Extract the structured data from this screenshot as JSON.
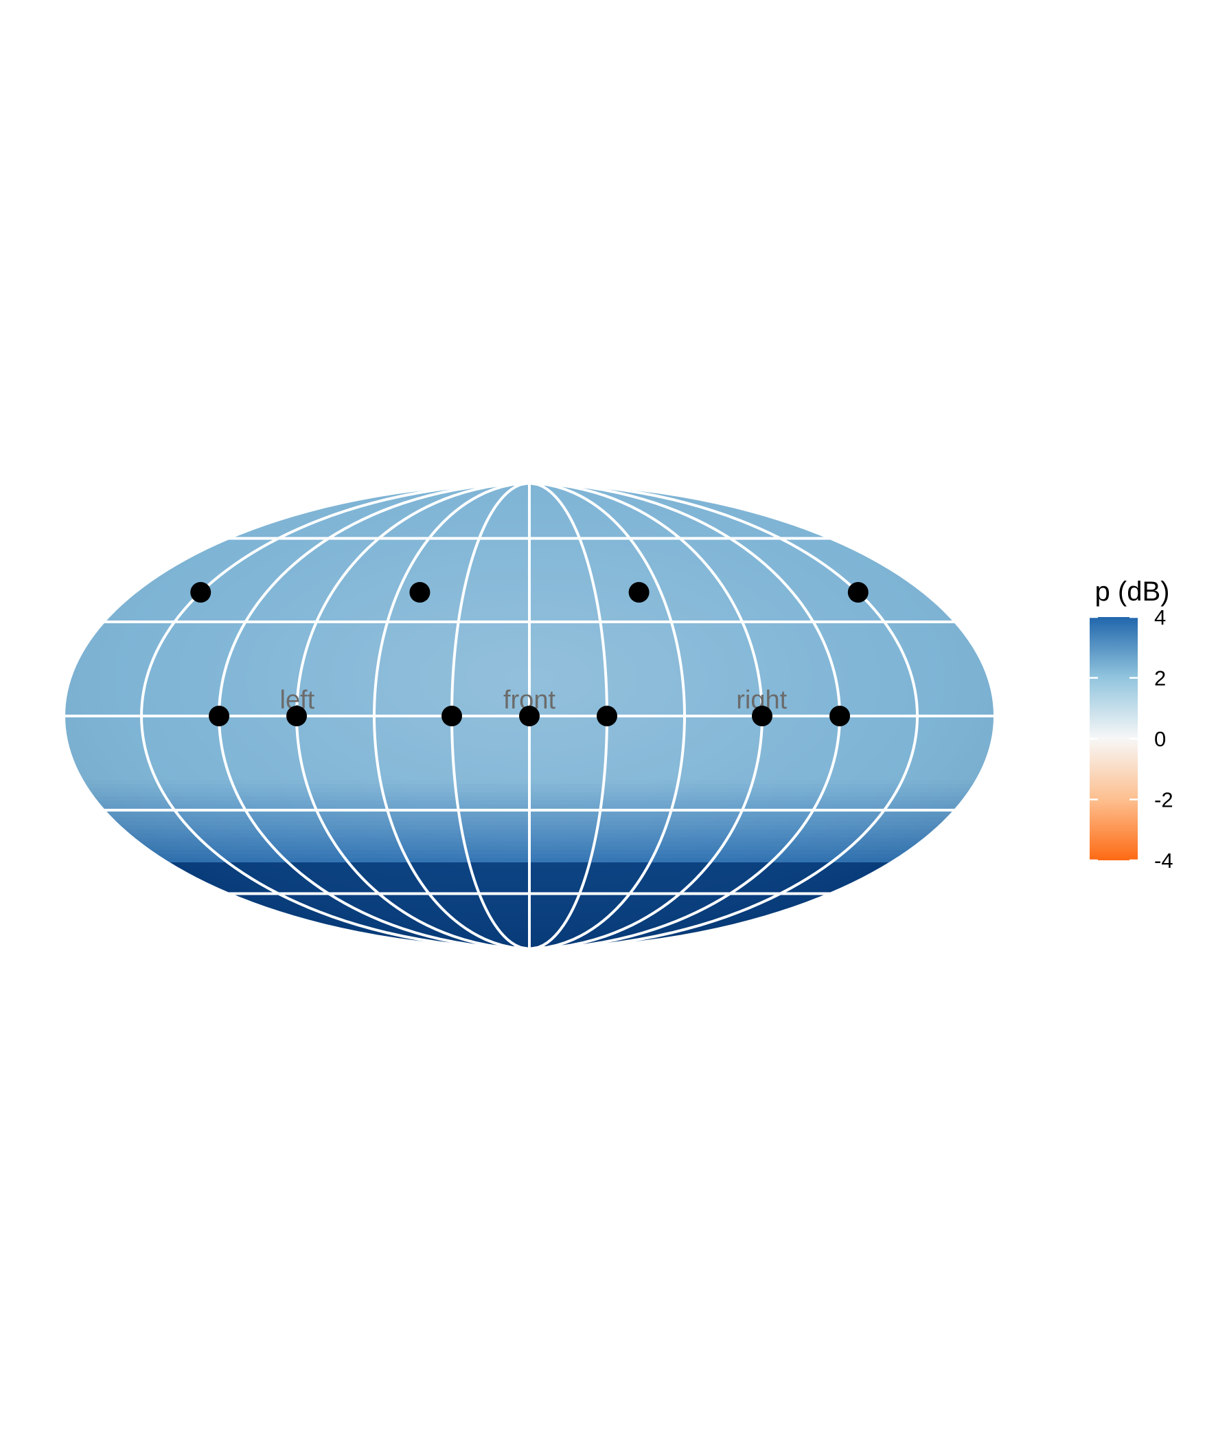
{
  "chart_data": {
    "type": "heatmap",
    "projection": "mollweide",
    "title": "",
    "xlabel": "",
    "ylabel": "",
    "grid": true,
    "grid_color": "#ffffff",
    "background": "#ffffff",
    "meridians_deg": [
      -180,
      -150,
      -120,
      -90,
      -60,
      -30,
      0,
      30,
      60,
      90,
      120,
      150,
      180
    ],
    "parallels_deg": [
      -60,
      -30,
      0,
      30,
      60
    ],
    "field": {
      "variable": "p (dB)",
      "base_value": 2.4,
      "description_colors": "light-to-medium blue over most of the sphere, deep blue (~4 dB, saturated) near the south pole region",
      "south_cap_from_lat_deg": -48,
      "south_cap_value": 4.6
    },
    "points": [
      {
        "lon": -150,
        "lat": 40
      },
      {
        "lon": -50,
        "lat": 40
      },
      {
        "lon": 50,
        "lat": 40
      },
      {
        "lon": 150,
        "lat": 40
      },
      {
        "lon": -120,
        "lat": 0
      },
      {
        "lon": -90,
        "lat": 0
      },
      {
        "lon": -30,
        "lat": 0
      },
      {
        "lon": 0,
        "lat": 0
      },
      {
        "lon": 30,
        "lat": 0
      },
      {
        "lon": 90,
        "lat": 0
      },
      {
        "lon": 120,
        "lat": 0
      }
    ],
    "point_color": "#000000",
    "direction_labels": [
      {
        "text": "left",
        "lon": -90,
        "lat": 5
      },
      {
        "text": "front",
        "lon": 0,
        "lat": 5
      },
      {
        "text": "right",
        "lon": 90,
        "lat": 5
      }
    ],
    "legend": {
      "title": "p (dB)",
      "placement": "right",
      "ticks": [
        4,
        2,
        0,
        -2,
        -4
      ],
      "tick_labels": [
        "4",
        "2",
        "0",
        "-2",
        "-4"
      ],
      "limits": [
        -4,
        4
      ],
      "colors": {
        "max": "#2166ac",
        "mid_high": "#92c5de",
        "zero": "#f7f7f7",
        "mid_low": "#fdbf8f",
        "min": "#fd6a13"
      },
      "saturated_high_color": "#053c7d"
    }
  }
}
